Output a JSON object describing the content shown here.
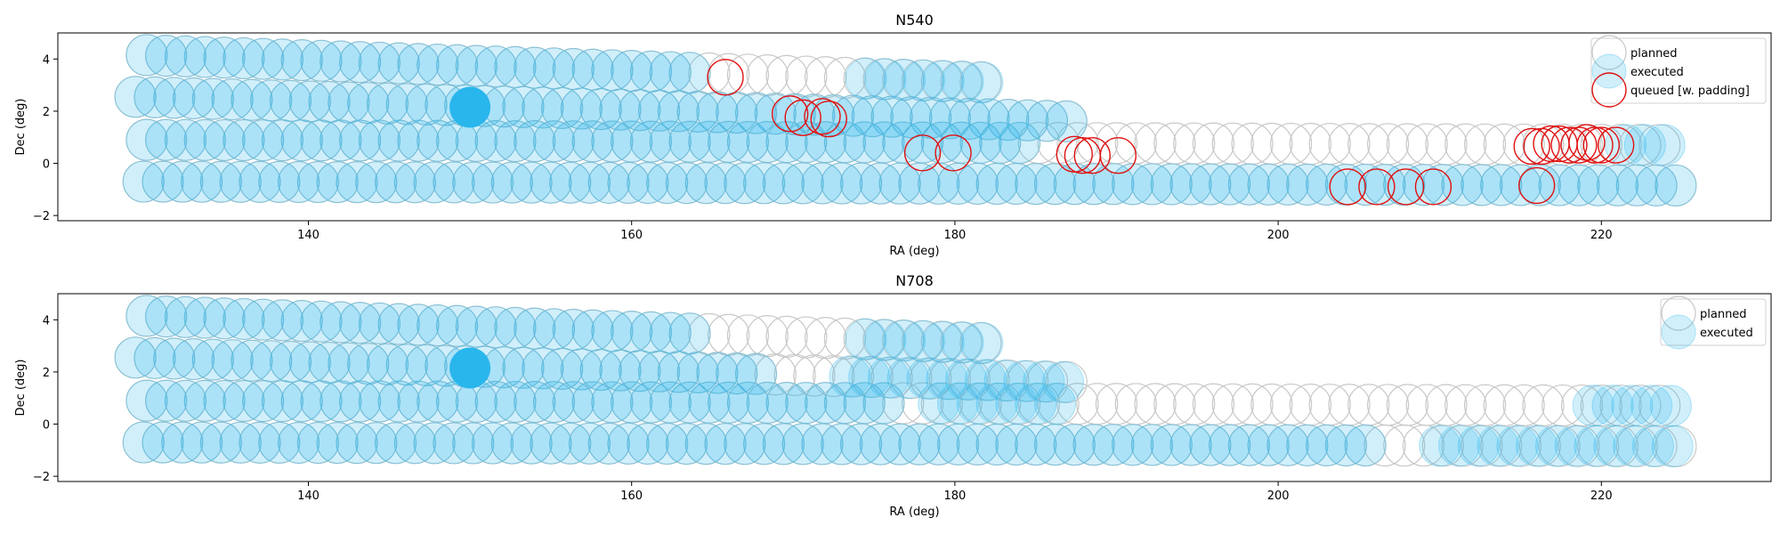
{
  "chart_data": [
    {
      "type": "scatter",
      "title": "N540",
      "xlabel": "RA (deg)",
      "ylabel": "Dec (deg)",
      "xlim": [
        124.5,
        230.5
      ],
      "ylim": [
        -2.2,
        5.0
      ],
      "xticks": [
        140,
        160,
        180,
        200,
        220
      ],
      "yticks": [
        -2,
        0,
        2,
        4
      ],
      "legend": {
        "placement": "upper-right",
        "entries": [
          "planned",
          "executed",
          "queued [w. padding]"
        ]
      },
      "colors": {
        "planned": "#c8c8c8",
        "executed": "#29b6ec",
        "queued": "#e01010"
      },
      "rows": [
        {
          "dec_start": 4.15,
          "dec_end": 3.1,
          "ra_start": 130.0,
          "ra_end": 182.0
        },
        {
          "dec_start": 2.55,
          "dec_end": 1.6,
          "ra_start": 129.3,
          "ra_end": 187.5
        },
        {
          "dec_start": 0.9,
          "dec_end": 0.7,
          "ra_start": 130.0,
          "ra_end": 224.5
        },
        {
          "dec_start": -0.7,
          "dec_end": -0.85,
          "ra_start": 129.8,
          "ra_end": 225.0
        }
      ],
      "series": [
        {
          "name": "executed",
          "segments": [
            {
              "row": 0,
              "ra_from": 130.0,
              "ra_to": 164.5
            },
            {
              "row": 0,
              "ra_from": 174.5,
              "ra_to": 182.0
            },
            {
              "row": 1,
              "ra_from": 129.3,
              "ra_to": 187.5
            },
            {
              "row": 2,
              "ra_from": 130.0,
              "ra_to": 185.0
            },
            {
              "row": 2,
              "ra_from": 221.5,
              "ra_to": 224.5
            },
            {
              "row": 3,
              "ra_from": 129.8,
              "ra_to": 225.0
            }
          ]
        },
        {
          "name": "planned",
          "segments": [
            {
              "row": 0,
              "ra_from": 165.0,
              "ra_to": 174.0
            },
            {
              "row": 2,
              "ra_from": 185.5,
              "ra_to": 221.0
            }
          ]
        },
        {
          "name": "queued [w. padding]",
          "points": [
            [
              165.8,
              3.3
            ],
            [
              169.8,
              1.9
            ],
            [
              170.6,
              1.75
            ],
            [
              171.8,
              1.8
            ],
            [
              172.2,
              1.7
            ],
            [
              178.0,
              0.4
            ],
            [
              179.9,
              0.4
            ],
            [
              187.4,
              0.35
            ],
            [
              187.9,
              0.3
            ],
            [
              188.5,
              0.3
            ],
            [
              190.1,
              0.3
            ],
            [
              204.3,
              -0.9
            ],
            [
              206.1,
              -0.9
            ],
            [
              207.9,
              -0.9
            ],
            [
              209.6,
              -0.9
            ],
            [
              215.7,
              0.65
            ],
            [
              216.3,
              0.65
            ],
            [
              216.9,
              0.75
            ],
            [
              217.4,
              0.75
            ],
            [
              218.0,
              0.7
            ],
            [
              218.6,
              0.7
            ],
            [
              219.1,
              0.8
            ],
            [
              219.6,
              0.7
            ],
            [
              220.0,
              0.7
            ],
            [
              220.9,
              0.7
            ],
            [
              216.0,
              -0.85
            ]
          ]
        },
        {
          "name": "large_marker",
          "points": [
            [
              150.0,
              2.15
            ]
          ]
        }
      ]
    },
    {
      "type": "scatter",
      "title": "N708",
      "xlabel": "RA (deg)",
      "ylabel": "Dec (deg)",
      "xlim": [
        124.5,
        230.5
      ],
      "ylim": [
        -2.2,
        5.0
      ],
      "xticks": [
        140,
        160,
        180,
        200,
        220
      ],
      "yticks": [
        -2,
        0,
        2,
        4
      ],
      "legend": {
        "placement": "upper-right",
        "entries": [
          "planned",
          "executed"
        ]
      },
      "colors": {
        "planned": "#c8c8c8",
        "executed": "#29b6ec"
      },
      "rows": [
        {
          "dec_start": 4.15,
          "dec_end": 3.1,
          "ra_start": 130.0,
          "ra_end": 182.0
        },
        {
          "dec_start": 2.55,
          "dec_end": 1.6,
          "ra_start": 129.3,
          "ra_end": 187.5
        },
        {
          "dec_start": 0.9,
          "dec_end": 0.7,
          "ra_start": 130.0,
          "ra_end": 224.5
        },
        {
          "dec_start": -0.7,
          "dec_end": -0.85,
          "ra_start": 129.8,
          "ra_end": 225.0
        }
      ],
      "series": [
        {
          "name": "executed",
          "segments": [
            {
              "row": 0,
              "ra_from": 130.0,
              "ra_to": 164.5
            },
            {
              "row": 0,
              "ra_from": 174.5,
              "ra_to": 182.0
            },
            {
              "row": 1,
              "ra_from": 129.3,
              "ra_to": 168.5
            },
            {
              "row": 1,
              "ra_from": 173.5,
              "ra_to": 187.5
            },
            {
              "row": 2,
              "ra_from": 130.0,
              "ra_to": 176.5
            },
            {
              "row": 2,
              "ra_from": 179.0,
              "ra_to": 186.5
            },
            {
              "row": 2,
              "ra_from": 219.5,
              "ra_to": 224.5
            },
            {
              "row": 3,
              "ra_from": 129.8,
              "ra_to": 206.5
            },
            {
              "row": 3,
              "ra_from": 210.0,
              "ra_to": 225.0
            }
          ]
        },
        {
          "name": "planned",
          "segments": [
            {
              "row": 0,
              "ra_from": 165.0,
              "ra_to": 174.0
            },
            {
              "row": 1,
              "ra_from": 169.0,
              "ra_to": 173.0
            },
            {
              "row": 2,
              "ra_from": 177.0,
              "ra_to": 178.5
            },
            {
              "row": 2,
              "ra_from": 187.0,
              "ra_to": 219.0
            },
            {
              "row": 3,
              "ra_from": 207.0,
              "ra_to": 209.5
            }
          ]
        },
        {
          "name": "large_marker",
          "points": [
            [
              150.0,
              2.15
            ]
          ]
        }
      ]
    }
  ]
}
